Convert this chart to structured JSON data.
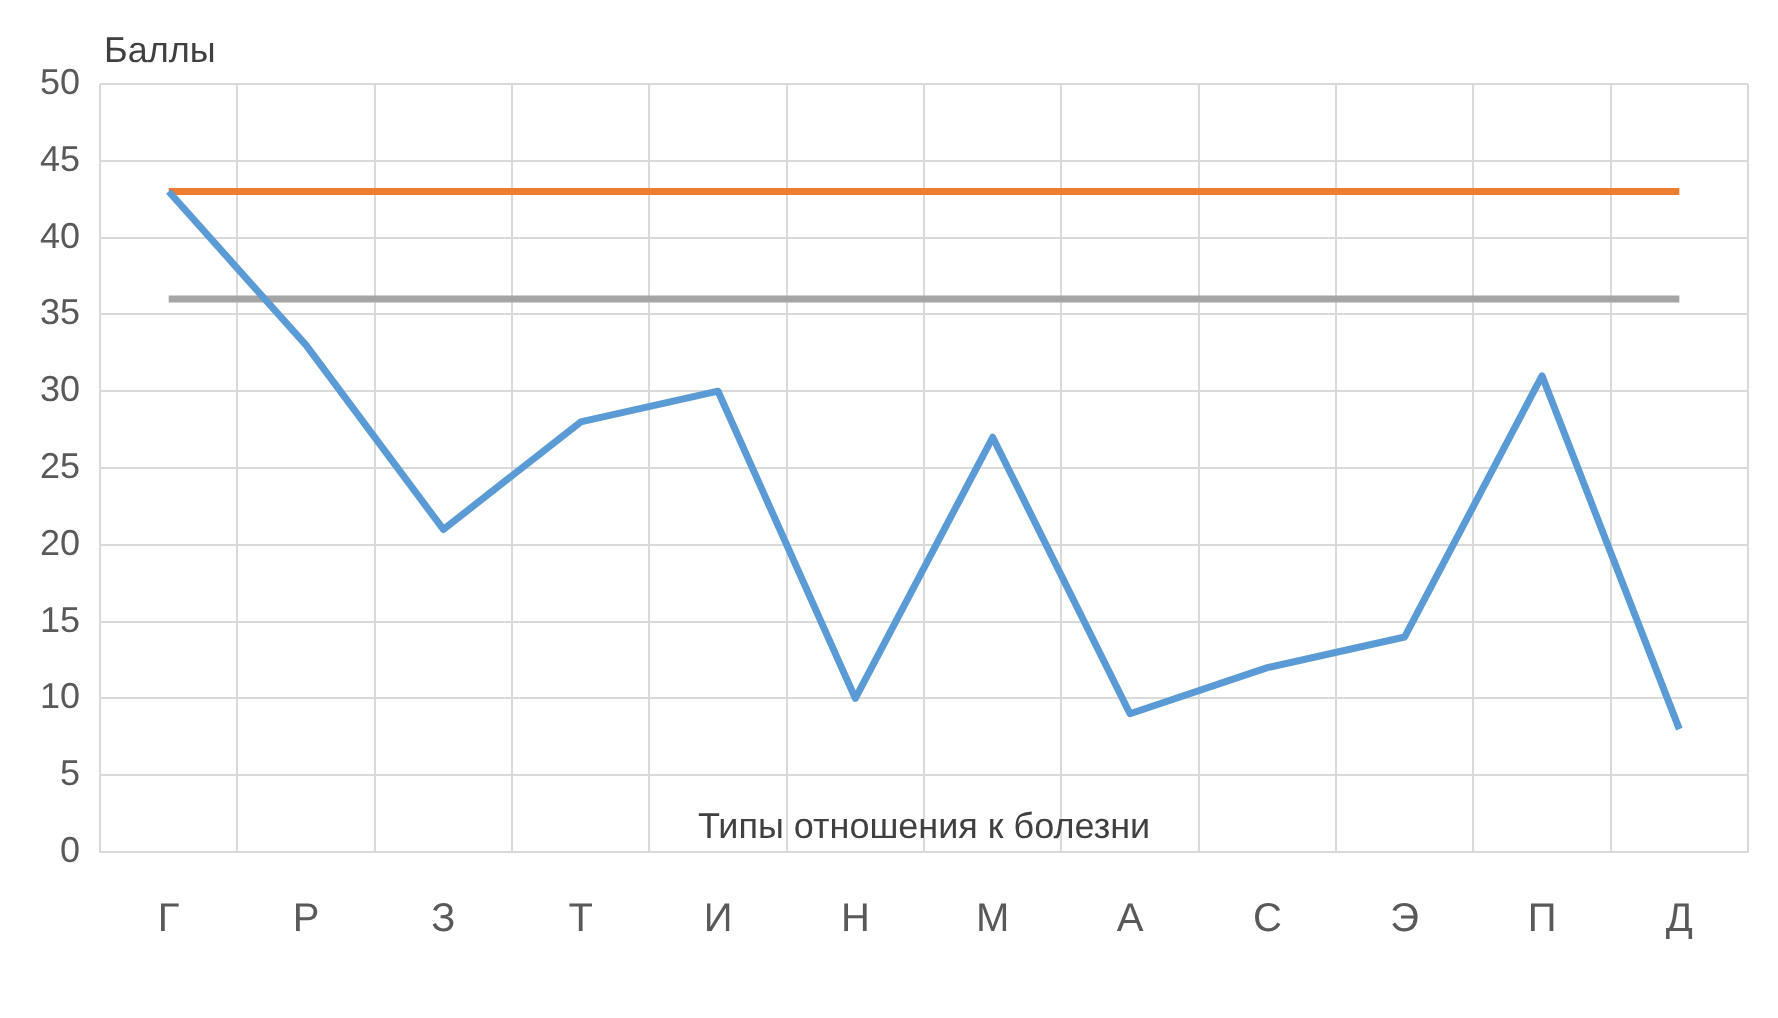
{
  "chart_data": {
    "type": "line",
    "xlabel": "Типы отношения к болезни",
    "ylabel": "Баллы",
    "categories": [
      "Г",
      "Р",
      "З",
      "Т",
      "И",
      "Н",
      "М",
      "А",
      "С",
      "Э",
      "П",
      "Д"
    ],
    "series": [
      {
        "color": "#5b9bd5",
        "values": [
          43,
          33,
          21,
          28,
          30,
          10,
          27,
          9,
          12,
          14,
          31,
          8
        ]
      },
      {
        "color": "#ed7d31",
        "values": [
          43,
          43,
          43,
          43,
          43,
          43,
          43,
          43,
          43,
          43,
          43,
          43
        ]
      },
      {
        "color": "#a5a5a5",
        "values": [
          36,
          36,
          36,
          36,
          36,
          36,
          36,
          36,
          36,
          36,
          36,
          36
        ]
      }
    ],
    "ylim": [
      0,
      50
    ],
    "yticks": [
      0,
      5,
      10,
      15,
      20,
      25,
      30,
      35,
      40,
      45,
      50
    ],
    "grid": true,
    "legend": false,
    "marker": "none",
    "line_style": "solid"
  }
}
